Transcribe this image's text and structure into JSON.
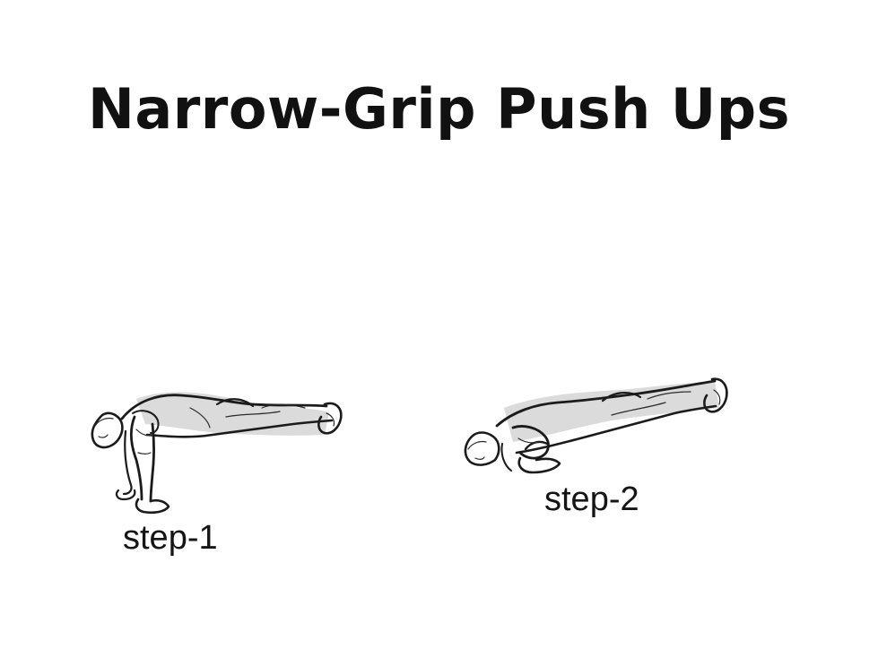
{
  "title": "Narrow-Grip Push Ups",
  "steps": [
    {
      "label": "step-1",
      "illustration": "push-up-top-position"
    },
    {
      "label": "step-2",
      "illustration": "push-up-bottom-position"
    }
  ],
  "colors": {
    "background": "#ffffff",
    "ink": "#111111"
  }
}
